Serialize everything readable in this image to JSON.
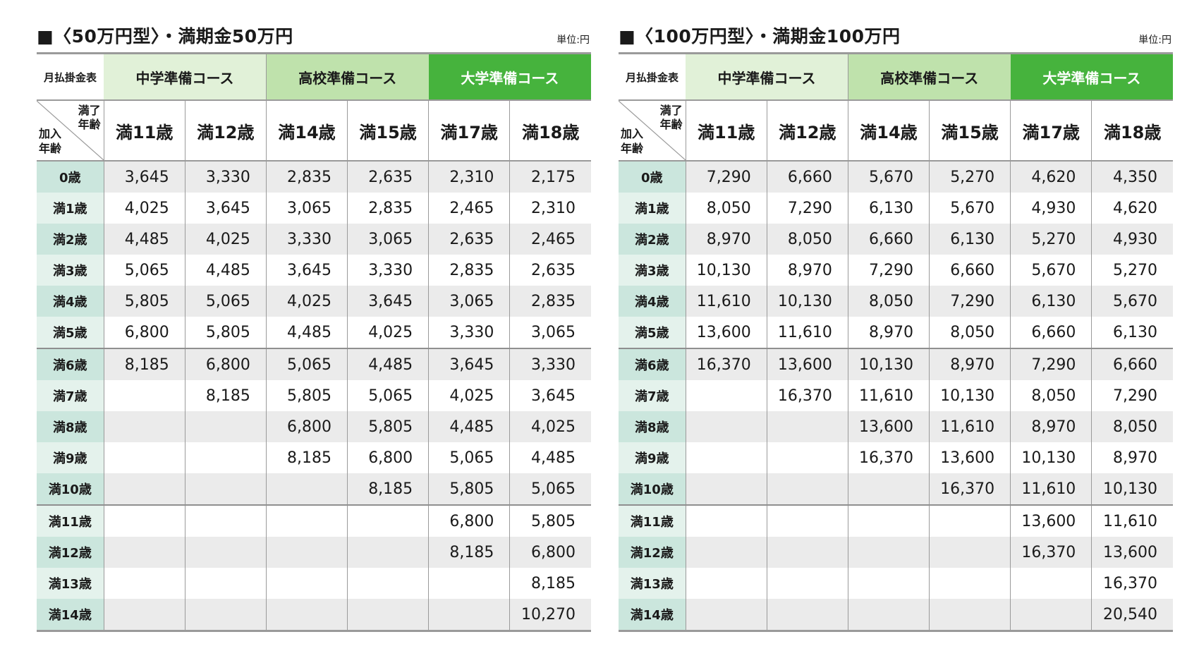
{
  "tables": [
    {
      "title": "■〈50万円型〉・満期金50万円",
      "unit": "単位:円",
      "corner_label": "月払掛金表",
      "corner_top": "満了年齢",
      "corner_top_lines": [
        "満了",
        "年齢"
      ],
      "corner_bottom_lines": [
        "加入",
        "年齢"
      ],
      "courses": [
        "中学準備コース",
        "高校準備コース",
        "大学準備コース"
      ],
      "maturity_ages": [
        "満11歳",
        "満12歳",
        "満14歳",
        "満15歳",
        "満17歳",
        "満18歳"
      ],
      "rows": [
        {
          "age": "0歳",
          "values": [
            "3,645",
            "3,330",
            "2,835",
            "2,635",
            "2,310",
            "2,175"
          ]
        },
        {
          "age": "満1歳",
          "values": [
            "4,025",
            "3,645",
            "3,065",
            "2,835",
            "2,465",
            "2,310"
          ]
        },
        {
          "age": "満2歳",
          "values": [
            "4,485",
            "4,025",
            "3,330",
            "3,065",
            "2,635",
            "2,465"
          ]
        },
        {
          "age": "満3歳",
          "values": [
            "5,065",
            "4,485",
            "3,645",
            "3,330",
            "2,835",
            "2,635"
          ]
        },
        {
          "age": "満4歳",
          "values": [
            "5,805",
            "5,065",
            "4,025",
            "3,645",
            "3,065",
            "2,835"
          ]
        },
        {
          "age": "満5歳",
          "values": [
            "6,800",
            "5,805",
            "4,485",
            "4,025",
            "3,330",
            "3,065"
          ]
        },
        {
          "age": "満6歳",
          "values": [
            "8,185",
            "6,800",
            "5,065",
            "4,485",
            "3,645",
            "3,330"
          ]
        },
        {
          "age": "満7歳",
          "values": [
            "",
            "8,185",
            "5,805",
            "5,065",
            "4,025",
            "3,645"
          ]
        },
        {
          "age": "満8歳",
          "values": [
            "",
            "",
            "6,800",
            "5,805",
            "4,485",
            "4,025"
          ]
        },
        {
          "age": "満9歳",
          "values": [
            "",
            "",
            "8,185",
            "6,800",
            "5,065",
            "4,485"
          ]
        },
        {
          "age": "満10歳",
          "values": [
            "",
            "",
            "",
            "8,185",
            "5,805",
            "5,065"
          ]
        },
        {
          "age": "満11歳",
          "values": [
            "",
            "",
            "",
            "",
            "6,800",
            "5,805"
          ]
        },
        {
          "age": "満12歳",
          "values": [
            "",
            "",
            "",
            "",
            "8,185",
            "6,800"
          ]
        },
        {
          "age": "満13歳",
          "values": [
            "",
            "",
            "",
            "",
            "",
            "8,185"
          ]
        },
        {
          "age": "満14歳",
          "values": [
            "",
            "",
            "",
            "",
            "",
            "10,270"
          ]
        }
      ]
    },
    {
      "title": "■〈100万円型〉・満期金100万円",
      "unit": "単位:円",
      "corner_label": "月払掛金表",
      "corner_top_lines": [
        "満了",
        "年齢"
      ],
      "corner_bottom_lines": [
        "加入",
        "年齢"
      ],
      "courses": [
        "中学準備コース",
        "高校準備コース",
        "大学準備コース"
      ],
      "maturity_ages": [
        "満11歳",
        "満12歳",
        "満14歳",
        "満15歳",
        "満17歳",
        "満18歳"
      ],
      "rows": [
        {
          "age": "0歳",
          "values": [
            "7,290",
            "6,660",
            "5,670",
            "5,270",
            "4,620",
            "4,350"
          ]
        },
        {
          "age": "満1歳",
          "values": [
            "8,050",
            "7,290",
            "6,130",
            "5,670",
            "4,930",
            "4,620"
          ]
        },
        {
          "age": "満2歳",
          "values": [
            "8,970",
            "8,050",
            "6,660",
            "6,130",
            "5,270",
            "4,930"
          ]
        },
        {
          "age": "満3歳",
          "values": [
            "10,130",
            "8,970",
            "7,290",
            "6,660",
            "5,670",
            "5,270"
          ]
        },
        {
          "age": "満4歳",
          "values": [
            "11,610",
            "10,130",
            "8,050",
            "7,290",
            "6,130",
            "5,670"
          ]
        },
        {
          "age": "満5歳",
          "values": [
            "13,600",
            "11,610",
            "8,970",
            "8,050",
            "6,660",
            "6,130"
          ]
        },
        {
          "age": "満6歳",
          "values": [
            "16,370",
            "13,600",
            "10,130",
            "8,970",
            "7,290",
            "6,660"
          ]
        },
        {
          "age": "満7歳",
          "values": [
            "",
            "16,370",
            "11,610",
            "10,130",
            "8,050",
            "7,290"
          ]
        },
        {
          "age": "満8歳",
          "values": [
            "",
            "",
            "13,600",
            "11,610",
            "8,970",
            "8,050"
          ]
        },
        {
          "age": "満9歳",
          "values": [
            "",
            "",
            "16,370",
            "13,600",
            "10,130",
            "8,970"
          ]
        },
        {
          "age": "満10歳",
          "values": [
            "",
            "",
            "",
            "16,370",
            "11,610",
            "10,130"
          ]
        },
        {
          "age": "満11歳",
          "values": [
            "",
            "",
            "",
            "",
            "13,600",
            "11,610"
          ]
        },
        {
          "age": "満12歳",
          "values": [
            "",
            "",
            "",
            "",
            "16,370",
            "13,600"
          ]
        },
        {
          "age": "満13歳",
          "values": [
            "",
            "",
            "",
            "",
            "",
            "16,370"
          ]
        },
        {
          "age": "満14歳",
          "values": [
            "",
            "",
            "",
            "",
            "",
            "20,540"
          ]
        }
      ]
    }
  ]
}
